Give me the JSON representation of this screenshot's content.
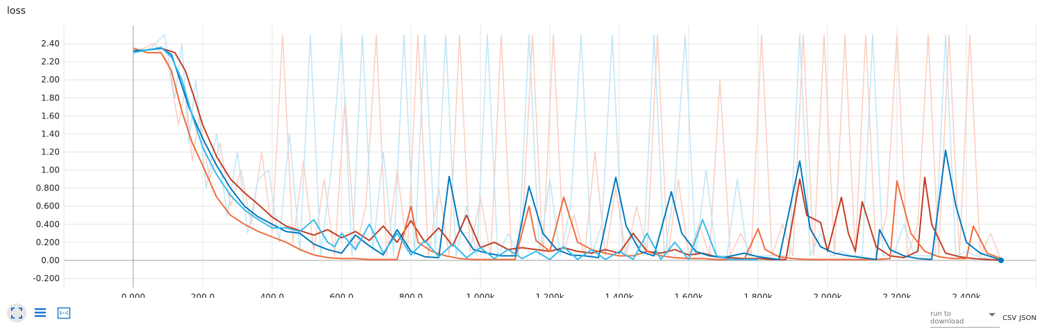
{
  "chart_data": {
    "type": "line",
    "title": "loss",
    "xlabel": "",
    "ylabel": "",
    "xlim": [
      -200,
      2600
    ],
    "ylim": [
      -0.3,
      2.6
    ],
    "grid": true,
    "x_ticks": [
      "0.000",
      "200.0",
      "400.0",
      "600.0",
      "800.0",
      "1.000k",
      "1.200k",
      "1.400k",
      "1.600k",
      "1.800k",
      "2.000k",
      "2.200k",
      "2.400k"
    ],
    "x_tick_values": [
      0,
      200,
      400,
      600,
      800,
      1000,
      1200,
      1400,
      1600,
      1800,
      2000,
      2200,
      2400
    ],
    "y_ticks": [
      "-0.200",
      "0.00",
      "0.200",
      "0.400",
      "0.600",
      "0.800",
      "1.00",
      "1.20",
      "1.40",
      "1.60",
      "1.80",
      "2.00",
      "2.20",
      "2.40"
    ],
    "y_tick_values": [
      -0.2,
      0,
      0.2,
      0.4,
      0.6,
      0.8,
      1.0,
      1.2,
      1.4,
      1.6,
      1.8,
      2.0,
      2.2,
      2.4
    ],
    "smoothed_series": [
      {
        "color": "#c23b22",
        "x": [
          0,
          40,
          80,
          120,
          150,
          180,
          200,
          240,
          280,
          320,
          360,
          400,
          440,
          480,
          520,
          560,
          600,
          640,
          680,
          720,
          760,
          800,
          840,
          880,
          920,
          960,
          1000,
          1040,
          1080,
          1120,
          1160,
          1200,
          1240,
          1280,
          1320,
          1360,
          1400,
          1440,
          1480,
          1520,
          1560,
          1600,
          1640,
          1680,
          1720,
          1760,
          1800,
          1840,
          1880,
          1920,
          1940,
          1980,
          2000,
          2040,
          2060,
          2080,
          2100,
          2140,
          2180,
          2220,
          2260,
          2280,
          2300,
          2340,
          2380,
          2420,
          2460,
          2500
        ],
        "y": [
          2.32,
          2.33,
          2.35,
          2.3,
          2.1,
          1.75,
          1.5,
          1.15,
          0.9,
          0.75,
          0.62,
          0.48,
          0.38,
          0.33,
          0.28,
          0.34,
          0.25,
          0.32,
          0.22,
          0.38,
          0.2,
          0.44,
          0.2,
          0.36,
          0.16,
          0.5,
          0.14,
          0.2,
          0.12,
          0.14,
          0.12,
          0.1,
          0.14,
          0.1,
          0.08,
          0.12,
          0.08,
          0.3,
          0.1,
          0.08,
          0.12,
          0.06,
          0.08,
          0.04,
          0.03,
          0.02,
          0.02,
          0.01,
          0.01,
          0.9,
          0.5,
          0.42,
          0.1,
          0.7,
          0.3,
          0.1,
          0.65,
          0.15,
          0.05,
          0.03,
          0.1,
          0.92,
          0.4,
          0.08,
          0.04,
          0.02,
          0.01,
          0.0
        ]
      },
      {
        "color": "#f16a3a",
        "x": [
          0,
          40,
          80,
          110,
          140,
          170,
          200,
          240,
          280,
          320,
          360,
          400,
          440,
          480,
          520,
          560,
          600,
          640,
          680,
          720,
          760,
          800,
          820,
          860,
          900,
          940,
          980,
          1020,
          1060,
          1100,
          1140,
          1160,
          1200,
          1240,
          1280,
          1320,
          1360,
          1400,
          1440,
          1480,
          1520,
          1560,
          1600,
          1640,
          1680,
          1720,
          1760,
          1800,
          1820,
          1860,
          1900,
          1940,
          1980,
          2020,
          2060,
          2100,
          2140,
          2180,
          2200,
          2240,
          2280,
          2320,
          2360,
          2400,
          2420,
          2460,
          2500
        ],
        "y": [
          2.35,
          2.3,
          2.3,
          2.1,
          1.65,
          1.3,
          1.05,
          0.7,
          0.5,
          0.4,
          0.32,
          0.26,
          0.2,
          0.12,
          0.06,
          0.03,
          0.02,
          0.02,
          0.01,
          0.01,
          0.01,
          0.6,
          0.2,
          0.1,
          0.05,
          0.02,
          0.01,
          0.01,
          0.01,
          0.01,
          0.6,
          0.22,
          0.1,
          0.7,
          0.2,
          0.12,
          0.08,
          0.05,
          0.05,
          0.1,
          0.05,
          0.03,
          0.02,
          0.02,
          0.01,
          0.01,
          0.01,
          0.35,
          0.12,
          0.04,
          0.02,
          0.01,
          0.01,
          0.01,
          0.01,
          0.01,
          0.01,
          0.02,
          0.88,
          0.3,
          0.1,
          0.04,
          0.02,
          0.02,
          0.38,
          0.08,
          0.02
        ]
      },
      {
        "color": "#0077bb",
        "x": [
          0,
          40,
          80,
          110,
          130,
          160,
          200,
          240,
          280,
          320,
          360,
          400,
          440,
          480,
          520,
          560,
          600,
          640,
          680,
          720,
          760,
          800,
          840,
          880,
          910,
          940,
          980,
          1020,
          1060,
          1100,
          1140,
          1180,
          1220,
          1260,
          1300,
          1340,
          1390,
          1420,
          1460,
          1500,
          1550,
          1580,
          1620,
          1660,
          1700,
          1760,
          1800,
          1860,
          1920,
          1950,
          1980,
          2020,
          2060,
          2100,
          2140,
          2150,
          2180,
          2220,
          2260,
          2300,
          2340,
          2370,
          2400,
          2440,
          2480,
          2500
        ],
        "y": [
          2.32,
          2.33,
          2.35,
          2.28,
          2.05,
          1.7,
          1.35,
          1.05,
          0.8,
          0.6,
          0.48,
          0.4,
          0.32,
          0.3,
          0.18,
          0.12,
          0.08,
          0.28,
          0.16,
          0.06,
          0.34,
          0.1,
          0.04,
          0.03,
          0.93,
          0.35,
          0.12,
          0.08,
          0.05,
          0.05,
          0.82,
          0.3,
          0.12,
          0.06,
          0.05,
          0.03,
          0.92,
          0.38,
          0.1,
          0.05,
          0.76,
          0.3,
          0.1,
          0.05,
          0.03,
          0.08,
          0.04,
          0.01,
          1.1,
          0.35,
          0.15,
          0.08,
          0.05,
          0.03,
          0.01,
          0.34,
          0.12,
          0.05,
          0.02,
          0.01,
          1.22,
          0.6,
          0.2,
          0.08,
          0.03,
          0.0
        ]
      },
      {
        "color": "#33bbee",
        "x": [
          0,
          40,
          80,
          110,
          140,
          170,
          200,
          240,
          280,
          320,
          360,
          400,
          440,
          480,
          520,
          560,
          580,
          600,
          640,
          680,
          720,
          760,
          800,
          840,
          880,
          920,
          960,
          1000,
          1040,
          1080,
          1120,
          1160,
          1200,
          1240,
          1280,
          1320,
          1360,
          1400,
          1440,
          1480,
          1520,
          1560,
          1600,
          1640,
          1680,
          1720,
          1760,
          1800
        ],
        "y": [
          2.3,
          2.33,
          2.36,
          2.25,
          2.0,
          1.6,
          1.25,
          0.95,
          0.72,
          0.56,
          0.45,
          0.36,
          0.36,
          0.32,
          0.45,
          0.2,
          0.15,
          0.3,
          0.12,
          0.4,
          0.08,
          0.3,
          0.06,
          0.22,
          0.04,
          0.18,
          0.03,
          0.14,
          0.02,
          0.12,
          0.02,
          0.1,
          0.01,
          0.15,
          0.01,
          0.12,
          0.01,
          0.1,
          0.01,
          0.3,
          0.01,
          0.2,
          0.01,
          0.45,
          0.05,
          0.01,
          0.01,
          0.01
        ]
      }
    ],
    "raw_series": [
      {
        "color": "#fbcdbf",
        "x": [
          0,
          60,
          100,
          130,
          150,
          170,
          190,
          220,
          250,
          280,
          310,
          340,
          370,
          400,
          430,
          460,
          490,
          520,
          550,
          580,
          610,
          640,
          670,
          700,
          730,
          760,
          790,
          820,
          850,
          880,
          910,
          940,
          970,
          1000,
          1030,
          1060,
          1090,
          1120,
          1150,
          1180,
          1210,
          1240,
          1270,
          1300,
          1330,
          1360,
          1390,
          1420,
          1450,
          1480,
          1510,
          1540,
          1570,
          1600,
          1630,
          1660,
          1690,
          1720,
          1750,
          1780,
          1810,
          1840,
          1870,
          1900,
          1930,
          1960,
          1990,
          2020,
          2050,
          2080,
          2110,
          2140,
          2170,
          2200,
          2230,
          2260,
          2290,
          2320,
          2350,
          2380,
          2410,
          2440,
          2470,
          2500
        ],
        "y": [
          2.3,
          2.4,
          2.2,
          1.5,
          1.9,
          1.1,
          1.6,
          0.9,
          1.3,
          0.6,
          1.0,
          0.4,
          1.2,
          0.3,
          2.5,
          0.2,
          1.1,
          0.1,
          0.9,
          0.05,
          1.8,
          0.1,
          0.6,
          2.5,
          0.05,
          1.0,
          0.1,
          2.5,
          0.05,
          0.8,
          0.05,
          2.5,
          0.1,
          0.7,
          0.05,
          2.5,
          0.05,
          0.3,
          2.5,
          0.05,
          2.5,
          0.1,
          0.5,
          0.05,
          1.2,
          0.05,
          0.8,
          0.05,
          0.6,
          0.1,
          2.5,
          0.05,
          0.9,
          0.05,
          0.4,
          0.05,
          2.0,
          0.05,
          0.3,
          0.05,
          2.5,
          0.05,
          0.4,
          0.05,
          2.5,
          0.05,
          2.5,
          0.05,
          2.5,
          0.05,
          2.5,
          0.05,
          0.5,
          2.5,
          0.05,
          0.4,
          2.5,
          0.05,
          2.5,
          0.05,
          2.5,
          0.05,
          0.3,
          0.0
        ]
      },
      {
        "color": "#bfe5f6",
        "x": [
          0,
          50,
          90,
          120,
          140,
          160,
          180,
          210,
          240,
          270,
          300,
          330,
          360,
          390,
          420,
          450,
          480,
          510,
          540,
          570,
          600,
          630,
          660,
          690,
          720,
          750,
          780,
          810,
          840,
          870,
          900,
          930,
          960,
          990,
          1020,
          1050,
          1080,
          1110,
          1140,
          1170,
          1200,
          1230,
          1260,
          1290,
          1320,
          1350,
          1380,
          1410,
          1440,
          1470,
          1500,
          1530,
          1560,
          1590,
          1620,
          1650,
          1680,
          1710,
          1740,
          1770,
          1800,
          1830,
          1860,
          1890,
          1920,
          1950,
          1980,
          2010,
          2040,
          2070,
          2100,
          2130,
          2160,
          2190,
          2220,
          2250,
          2280,
          2310,
          2340,
          2370,
          2400,
          2430,
          2460,
          2500
        ],
        "y": [
          2.3,
          2.35,
          2.5,
          1.8,
          2.4,
          1.3,
          2.0,
          0.8,
          1.4,
          0.5,
          1.2,
          0.3,
          0.9,
          1.0,
          0.2,
          1.4,
          0.1,
          2.5,
          0.05,
          1.0,
          2.5,
          0.05,
          2.5,
          0.1,
          1.2,
          0.05,
          2.5,
          0.05,
          2.5,
          0.1,
          2.5,
          0.05,
          0.6,
          0.05,
          2.5,
          0.05,
          0.3,
          0.05,
          2.5,
          0.05,
          0.9,
          0.05,
          0.6,
          2.5,
          0.05,
          0.4,
          2.5,
          0.05,
          0.3,
          0.05,
          2.5,
          0.05,
          0.8,
          2.5,
          0.05,
          1.0,
          0.05,
          0.05,
          0.9,
          0.05,
          0.05,
          0.05,
          0.05,
          0.05,
          2.5,
          0.05,
          0.3,
          0.05,
          0.1,
          0.05,
          0.05,
          2.5,
          0.05,
          0.05,
          0.4,
          0.05,
          0.05,
          0.05,
          2.5,
          0.05,
          0.1,
          0.05,
          0.02,
          0.0
        ]
      }
    ],
    "end_marker": {
      "x": 2500,
      "y": 0.0,
      "color": "#0077bb"
    }
  },
  "toolbar": {
    "icons": [
      "fullscreen-icon",
      "lines-icon",
      "fit-domain-icon"
    ]
  },
  "download": {
    "select_label": "run to download",
    "csv_label": "CSV",
    "json_label": "JSON"
  }
}
